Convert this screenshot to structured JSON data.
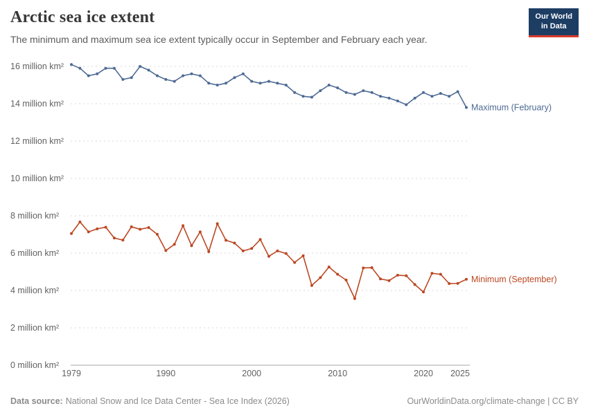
{
  "header": {
    "title": "Arctic sea ice extent",
    "subtitle": "The minimum and maximum sea ice extent typically occur in September and February each year."
  },
  "logo": {
    "line1": "Our World",
    "line2": "in Data"
  },
  "footer": {
    "source_label": "Data source:",
    "source_text": "National Snow and Ice Data Center - Sea Ice Index (2026)",
    "right_text": "OurWorldinData.org/climate-change | CC BY"
  },
  "chart_data": {
    "type": "line",
    "title": "Arctic sea ice extent",
    "subtitle": "The minimum and maximum sea ice extent typically occur in September and February each year.",
    "unit": "million km²",
    "grid": "horizontal-dashed",
    "legend": "end-of-line-labels",
    "ylim": [
      0,
      16.6
    ],
    "x_ticks": [
      1979,
      1990,
      2000,
      2010,
      2020,
      2025
    ],
    "y_ticks": [
      {
        "value": 0,
        "label": "0 million km²"
      },
      {
        "value": 2,
        "label": "2 million km²"
      },
      {
        "value": 4,
        "label": "4 million km²"
      },
      {
        "value": 6,
        "label": "6 million km²"
      },
      {
        "value": 8,
        "label": "8 million km²"
      },
      {
        "value": 10,
        "label": "10 million km²"
      },
      {
        "value": 12,
        "label": "12 million km²"
      },
      {
        "value": 14,
        "label": "14 million km²"
      },
      {
        "value": 16,
        "label": "16 million km²"
      }
    ],
    "years": [
      1979,
      1980,
      1981,
      1982,
      1983,
      1984,
      1985,
      1986,
      1987,
      1988,
      1989,
      1990,
      1991,
      1992,
      1993,
      1994,
      1995,
      1996,
      1997,
      1998,
      1999,
      2000,
      2001,
      2002,
      2003,
      2004,
      2005,
      2006,
      2007,
      2008,
      2009,
      2010,
      2011,
      2012,
      2013,
      2014,
      2015,
      2016,
      2017,
      2018,
      2019,
      2020,
      2021,
      2022,
      2023,
      2024,
      2025
    ],
    "series": [
      {
        "name": "Maximum (February)",
        "color": "#4d6a94",
        "values": [
          16.1,
          15.9,
          15.5,
          15.6,
          15.9,
          15.9,
          15.3,
          15.4,
          16.0,
          15.8,
          15.5,
          15.3,
          15.2,
          15.5,
          15.6,
          15.5,
          15.1,
          15.0,
          15.1,
          15.4,
          15.6,
          15.2,
          15.1,
          15.2,
          15.1,
          15.0,
          14.6,
          14.4,
          14.35,
          14.7,
          15.0,
          14.85,
          14.6,
          14.5,
          14.7,
          14.6,
          14.4,
          14.3,
          14.15,
          13.95,
          14.3,
          14.6,
          14.4,
          14.55,
          14.4,
          14.65,
          13.8
        ]
      },
      {
        "name": "Minimum (September)",
        "color": "#bc4722",
        "values": [
          7.05,
          7.67,
          7.14,
          7.3,
          7.39,
          6.81,
          6.7,
          7.41,
          7.28,
          7.37,
          7.01,
          6.14,
          6.47,
          7.47,
          6.4,
          7.14,
          6.08,
          7.58,
          6.69,
          6.54,
          6.12,
          6.25,
          6.73,
          5.83,
          6.12,
          5.98,
          5.5,
          5.86,
          4.27,
          4.69,
          5.26,
          4.87,
          4.56,
          3.57,
          5.21,
          5.22,
          4.62,
          4.53,
          4.82,
          4.79,
          4.32,
          3.92,
          4.92,
          4.87,
          4.37,
          4.38,
          4.6
        ]
      }
    ]
  }
}
